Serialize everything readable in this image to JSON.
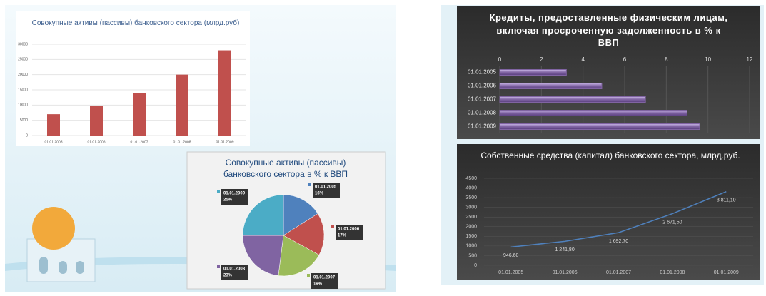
{
  "chart_data": [
    {
      "type": "bar",
      "title": "Совокупные активы (пассивы) банковского сектора (млрд.руб)",
      "categories": [
        "01.01.2005",
        "01.01.2006",
        "01.01.2007",
        "01.01.2008",
        "01.01.2009"
      ],
      "values": [
        7000,
        9700,
        14000,
        20000,
        28000
      ],
      "color": "#c0504d",
      "ylim": [
        0,
        30000
      ],
      "yticks": [
        0,
        5000,
        10000,
        15000,
        20000,
        25000,
        30000
      ],
      "grid": true
    },
    {
      "type": "hbar",
      "title": "Кредиты, предоставленные физическим лицам, включая просроченную задолженность  в % к ВВП",
      "categories": [
        "01.01.2005",
        "01.01.2006",
        "01.01.2007",
        "01.01.2008",
        "01.01.2009"
      ],
      "values": [
        3.2,
        4.9,
        7.0,
        9.0,
        9.6
      ],
      "color": "#8064a2",
      "xlim": [
        0,
        12
      ],
      "xticks": [
        0,
        2,
        4,
        6,
        8,
        10,
        12
      ],
      "grid": true
    },
    {
      "type": "pie",
      "title": "Совокупные активы (пассивы) банковского сектора в % к ВВП",
      "categories": [
        "01.01.2005",
        "01.01.2006",
        "01.01.2007",
        "01.01.2008",
        "01.01.2009"
      ],
      "values": [
        16,
        17,
        19,
        23,
        25
      ],
      "value_labels": [
        "16%",
        "17%",
        "19%",
        "23%",
        "25%"
      ],
      "colors": [
        "#4f81bd",
        "#c0504d",
        "#9bbb59",
        "#8064a2",
        "#4bacc6"
      ]
    },
    {
      "type": "line",
      "title": "Собственные средства (капитал) банковского сектора, млрд.руб.",
      "categories": [
        "01.01.2005",
        "01.01.2006",
        "01.01.2007",
        "01.01.2008",
        "01.01.2009"
      ],
      "values": [
        946.6,
        1241.8,
        1692.7,
        2671.5,
        3811.1
      ],
      "value_labels": [
        "946,60",
        "1 241,80",
        "1 692,70",
        "2 671,50",
        "3 811,10"
      ],
      "color": "#4f81bd",
      "ylim": [
        0,
        4500
      ],
      "yticks": [
        0,
        500,
        1000,
        1500,
        2000,
        2500,
        3000,
        3500,
        4000,
        4500
      ],
      "grid": true
    }
  ]
}
